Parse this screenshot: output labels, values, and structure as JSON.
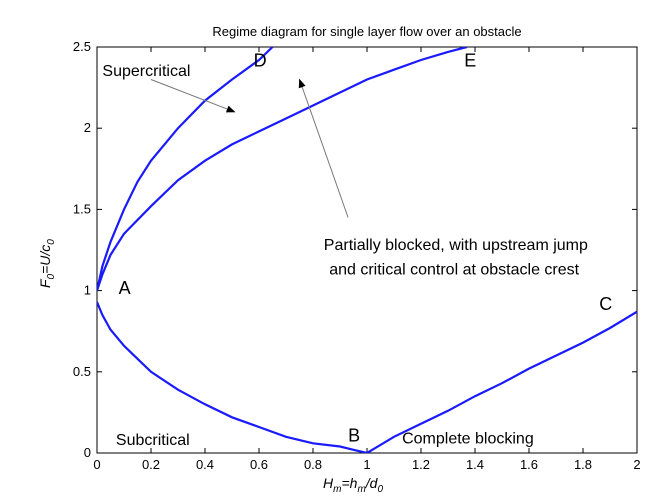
{
  "chart_data": {
    "type": "line",
    "title": "Regime diagram for single layer flow over an obstacle",
    "xlabel": {
      "main": "H",
      "main_sub": "m",
      "eq": "=h",
      "eq_sub": "m",
      "slash": "/d",
      "slash_sub": "0"
    },
    "ylabel": {
      "main": "F",
      "main_sub": "0",
      "eq": "=U/c",
      "eq_sub": "0"
    },
    "xlim": [
      0,
      2
    ],
    "ylim": [
      0,
      2.5
    ],
    "xticks": [
      0,
      0.2,
      0.4,
      0.6,
      0.8,
      1,
      1.2,
      1.4,
      1.6,
      1.8,
      2
    ],
    "xtick_labels": [
      "0",
      "0.2",
      "0.4",
      "0.6",
      "0.8",
      "1",
      "1.2",
      "1.4",
      "1.6",
      "1.8",
      "2"
    ],
    "yticks": [
      0,
      0.5,
      1,
      1.5,
      2,
      2.5
    ],
    "ytick_labels": [
      "0",
      "0.5",
      "1",
      "1.5",
      "2",
      "2.5"
    ],
    "series": [
      {
        "name": "",
        "x": [
          0.0,
          0.02,
          0.05,
          0.1,
          0.15,
          0.2,
          0.3,
          0.4,
          0.5,
          0.6,
          0.7,
          0.8,
          0.9,
          0.95,
          1.0
        ],
        "y": [
          0.93,
          0.85,
          0.76,
          0.66,
          0.58,
          0.5,
          0.39,
          0.3,
          0.22,
          0.16,
          0.1,
          0.06,
          0.04,
          0.02,
          0.0
        ]
      },
      {
        "name": "",
        "x": [
          0.0,
          0.02,
          0.05,
          0.1,
          0.15,
          0.2,
          0.3,
          0.4,
          0.5,
          0.6,
          0.65
        ],
        "y": [
          1.0,
          1.15,
          1.3,
          1.5,
          1.67,
          1.8,
          2.0,
          2.17,
          2.3,
          2.42,
          2.5
        ]
      },
      {
        "name": "",
        "x": [
          0.0,
          0.02,
          0.05,
          0.1,
          0.2,
          0.3,
          0.4,
          0.5,
          0.6,
          0.7,
          0.8,
          0.9,
          1.0,
          1.1,
          1.2,
          1.3,
          1.37
        ],
        "y": [
          1.0,
          1.1,
          1.22,
          1.35,
          1.52,
          1.68,
          1.8,
          1.9,
          1.98,
          2.06,
          2.14,
          2.22,
          2.3,
          2.36,
          2.42,
          2.47,
          2.5
        ]
      },
      {
        "name": "",
        "x": [
          1.0,
          1.1,
          1.2,
          1.3,
          1.4,
          1.5,
          1.6,
          1.7,
          1.8,
          1.9,
          2.0
        ],
        "y": [
          0.0,
          0.1,
          0.18,
          0.26,
          0.35,
          0.43,
          0.52,
          0.6,
          0.68,
          0.77,
          0.87
        ]
      }
    ],
    "point_labels": [
      {
        "text": "A",
        "x": 0.08,
        "y": 0.98
      },
      {
        "text": "B",
        "x": 0.93,
        "y": 0.07
      },
      {
        "text": "C",
        "x": 1.86,
        "y": 0.88
      },
      {
        "text": "D",
        "x": 0.58,
        "y": 2.38
      },
      {
        "text": "E",
        "x": 1.36,
        "y": 2.38
      }
    ],
    "region_labels": [
      {
        "text": "Supercritical",
        "x": 0.02,
        "y": 2.32
      },
      {
        "text": "Partially blocked, with upstream jump",
        "x": 0.84,
        "y": 1.25
      },
      {
        "text": "and critical control at obstacle crest",
        "x": 0.86,
        "y": 1.1
      },
      {
        "text": "Subcritical",
        "x": 0.07,
        "y": 0.05
      },
      {
        "text": "Complete blocking",
        "x": 1.13,
        "y": 0.06
      }
    ],
    "arrows": [
      {
        "from": [
          0.2,
          2.3
        ],
        "to": [
          0.51,
          2.1
        ]
      },
      {
        "from": [
          0.93,
          1.45
        ],
        "to": [
          0.75,
          2.3
        ]
      }
    ],
    "colors": {
      "curve": "#1a1aff",
      "axis": "#000000"
    },
    "grid": false,
    "legend": "none"
  }
}
